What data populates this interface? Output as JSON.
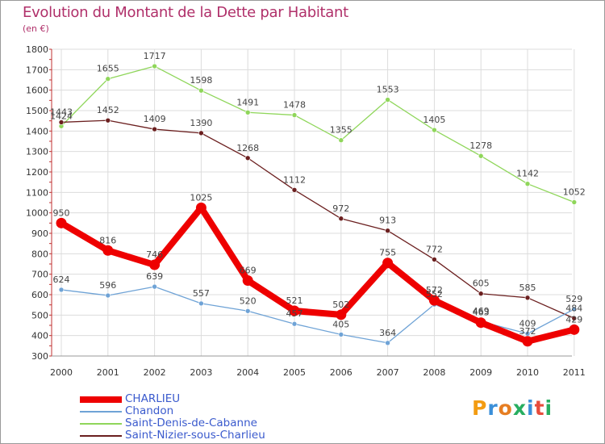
{
  "header": {
    "title": "Evolution du Montant de la Dette par Habitant",
    "unit": "(en €)"
  },
  "chart_data": {
    "type": "line",
    "title": "Evolution du Montant de la Dette par Habitant",
    "subtitle": "(en €)",
    "x": [
      "2000",
      "2001",
      "2002",
      "2003",
      "2004",
      "2005",
      "2006",
      "2007",
      "2008",
      "2009",
      "2010",
      "2011"
    ],
    "ylim": [
      300,
      1800
    ],
    "yticks": [
      300,
      400,
      500,
      600,
      700,
      800,
      900,
      1000,
      1100,
      1200,
      1300,
      1400,
      1500,
      1600,
      1700,
      1800
    ],
    "grid": true,
    "legend_position": "bottom-left",
    "series": [
      {
        "name": "Saint-Denis-de-Cabanne",
        "color": "#8fd65a",
        "values": [
          1424,
          1655,
          1717,
          1598,
          1491,
          1478,
          1355,
          1553,
          1405,
          1278,
          1142,
          1052
        ],
        "labels": [
          "1424",
          "1655",
          "1717",
          "1598",
          "1491",
          "1478",
          "1355",
          "1553",
          "1405",
          "1278",
          "1142",
          "1052"
        ]
      },
      {
        "name": "Saint-Nizier-sous-Charlieu",
        "color": "#6b1f1f",
        "values": [
          1443,
          1452,
          1409,
          1390,
          1268,
          1112,
          972,
          913,
          772,
          605,
          585,
          484
        ],
        "labels": [
          "1443",
          "1452",
          "1409",
          "1390",
          "1268",
          "1112",
          "972",
          "913",
          "772",
          "605",
          "585",
          "484"
        ]
      },
      {
        "name": "Chandon",
        "color": "#6fa3d6",
        "values": [
          624,
          596,
          639,
          557,
          520,
          457,
          405,
          364,
          552,
          469,
          409,
          529
        ],
        "labels": [
          "624",
          "596",
          "639",
          "557",
          "520",
          "457",
          "405",
          "364",
          "552",
          "469",
          "409",
          "529"
        ]
      },
      {
        "name": "CHARLIEU",
        "color": "#ee0000",
        "values": [
          950,
          816,
          746,
          1025,
          669,
          521,
          502,
          755,
          572,
          463,
          372,
          429
        ],
        "labels": [
          "950",
          "816",
          "746",
          "1025",
          "669",
          "521",
          "502",
          "755",
          "572",
          "463",
          "372",
          "429"
        ]
      }
    ]
  },
  "legend": {
    "items": [
      {
        "label": "CHARLIEU",
        "color": "#ee0000"
      },
      {
        "label": "Chandon",
        "color": "#6fa3d6"
      },
      {
        "label": "Saint-Denis-de-Cabanne",
        "color": "#8fd65a"
      },
      {
        "label": "Saint-Nizier-sous-Charlieu",
        "color": "#6b1f1f"
      }
    ]
  },
  "logo": {
    "text": "Proxiti",
    "colors": [
      "#f39c12",
      "#3a8fd9",
      "#e67e22",
      "#27ae60",
      "#3a8fd9",
      "#e74c3c",
      "#27ae60"
    ]
  }
}
